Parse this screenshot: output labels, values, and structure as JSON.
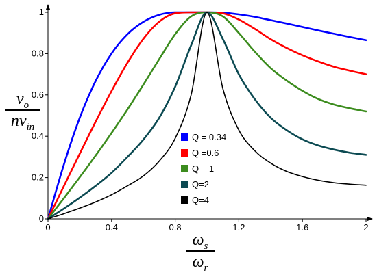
{
  "chart_data": {
    "type": "line",
    "title": "",
    "xlabel": {
      "numerator": {
        "main": "ω",
        "sub": "s"
      },
      "denominator": {
        "main": "ω",
        "sub": "r"
      }
    },
    "ylabel": {
      "numerator": {
        "main": "v",
        "sub": "o"
      },
      "denominator": {
        "main": "nv",
        "sub": "in"
      }
    },
    "xlim": [
      0,
      2
    ],
    "ylim": [
      0,
      1
    ],
    "xticks": [
      0,
      0.4,
      0.8,
      1.2,
      1.6,
      2
    ],
    "xtick_labels": [
      "0",
      "0.4",
      "0.8",
      "1.2",
      "1.6",
      "2"
    ],
    "yticks": [
      0,
      0.2,
      0.4,
      0.6,
      0.8,
      1
    ],
    "ytick_labels": [
      "0",
      "0.2",
      "0.4",
      "0.6",
      "0.8",
      "1"
    ],
    "grid": false,
    "legend_position": "center",
    "x": [
      0,
      0.1,
      0.2,
      0.3,
      0.4,
      0.5,
      0.6,
      0.7,
      0.8,
      0.9,
      1.0,
      1.1,
      1.2,
      1.3,
      1.4,
      1.5,
      1.6,
      1.7,
      1.8,
      1.9,
      2.0
    ],
    "series": [
      {
        "name": "Q = 0.34",
        "color": "#0000ff",
        "values": [
          0,
          0.263,
          0.49,
          0.668,
          0.801,
          0.894,
          0.954,
          0.988,
          1.0,
          1.0,
          1.0,
          0.998,
          0.99,
          0.978,
          0.962,
          0.946,
          0.929,
          0.912,
          0.896,
          0.88,
          0.865
        ]
      },
      {
        "name": "Q =0.6",
        "color": "#ff0000",
        "values": [
          0,
          0.159,
          0.316,
          0.471,
          0.619,
          0.756,
          0.872,
          0.955,
          0.995,
          1.0,
          1.0,
          0.995,
          0.965,
          0.92,
          0.87,
          0.828,
          0.792,
          0.762,
          0.736,
          0.717,
          0.7
        ]
      },
      {
        "name": "Q = 1",
        "color": "#3c8c1e",
        "values": [
          0,
          0.1,
          0.202,
          0.307,
          0.416,
          0.53,
          0.65,
          0.774,
          0.894,
          0.98,
          1.0,
          0.98,
          0.9,
          0.81,
          0.73,
          0.67,
          0.62,
          0.58,
          0.553,
          0.535,
          0.52
        ]
      },
      {
        "name": "Q=2",
        "color": "#0c4a52",
        "values": [
          0,
          0.05,
          0.103,
          0.16,
          0.223,
          0.3,
          0.384,
          0.49,
          0.64,
          0.84,
          1.0,
          0.87,
          0.7,
          0.58,
          0.49,
          0.43,
          0.385,
          0.355,
          0.335,
          0.32,
          0.31
        ]
      },
      {
        "name": "Q=4",
        "color": "#000000",
        "values": [
          0,
          0.025,
          0.052,
          0.082,
          0.117,
          0.16,
          0.208,
          0.28,
          0.39,
          0.6,
          1.0,
          0.63,
          0.43,
          0.33,
          0.27,
          0.23,
          0.205,
          0.187,
          0.175,
          0.168,
          0.163
        ]
      }
    ]
  }
}
